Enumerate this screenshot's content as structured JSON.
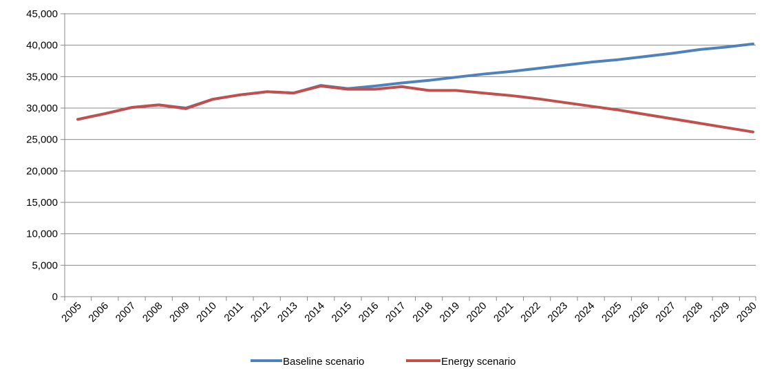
{
  "chart_data": {
    "type": "line",
    "title": "",
    "xlabel": "",
    "ylabel": "",
    "ylim": [
      0,
      45000
    ],
    "y_ticks": [
      "0",
      "5,000",
      "10,000",
      "15,000",
      "20,000",
      "25,000",
      "30,000",
      "35,000",
      "40,000",
      "45,000"
    ],
    "y_tick_values": [
      0,
      5000,
      10000,
      15000,
      20000,
      25000,
      30000,
      35000,
      40000,
      45000
    ],
    "categories": [
      "2005",
      "2006",
      "2007",
      "2008",
      "2009",
      "2010",
      "2011",
      "2012",
      "2013",
      "2014",
      "2015",
      "2016",
      "2017",
      "2018",
      "2019",
      "2020",
      "2021",
      "2022",
      "2023",
      "2024",
      "2025",
      "2026",
      "2027",
      "2028",
      "2029",
      "2030"
    ],
    "grid": "horizontal",
    "legend_position": "bottom",
    "series": [
      {
        "name": "Baseline scenario",
        "color": "#4F81BD",
        "values": [
          28200,
          29100,
          30100,
          30500,
          30000,
          31400,
          32100,
          32600,
          32400,
          33600,
          33100,
          33500,
          34000,
          34400,
          34900,
          35400,
          35800,
          36300,
          36800,
          37300,
          37700,
          38200,
          38700,
          39300,
          39700,
          40200
        ]
      },
      {
        "name": "Energy scenario",
        "color": "#C0504D",
        "values": [
          28200,
          29100,
          30100,
          30500,
          29900,
          31400,
          32100,
          32600,
          32400,
          33500,
          33000,
          33000,
          33400,
          32800,
          32800,
          32400,
          32000,
          31500,
          30900,
          30300,
          29700,
          29000,
          28300,
          27600,
          26900,
          26200
        ]
      }
    ]
  }
}
